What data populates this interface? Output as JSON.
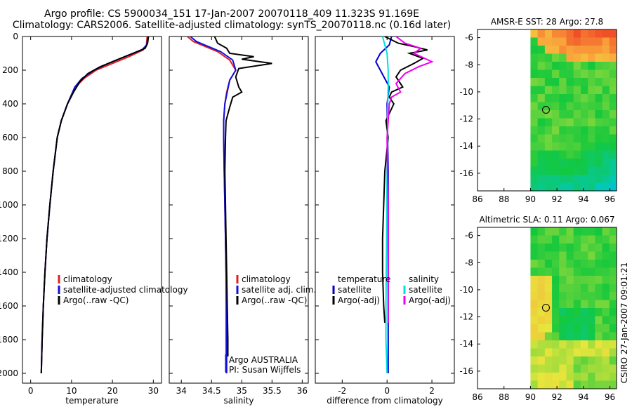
{
  "header": {
    "line1": "Argo profile: CS 5900034_151 17-Jan-2007 20070118_409 11.323S 91.169E",
    "line2": "Climatology: CARS2006. Satellite-adjusted climatology: synTS_20070118.nc (0.16d later)"
  },
  "colors": {
    "climatology": "#e02020",
    "satellite": "#1010e0",
    "argo": "#000000",
    "sat_diff_temp": "#0000cc",
    "sat_diff_salt": "#00e0e0",
    "argo_diff_salt": "#ee00ee"
  },
  "chart_data": [
    {
      "id": "temperature",
      "type": "line",
      "xlabel": "temperature",
      "ylabel": "",
      "xlim": [
        -2,
        32
      ],
      "ylim": [
        2100,
        0
      ],
      "xticks": [
        "0",
        "10",
        "20",
        "30"
      ],
      "xtick_values": [
        0,
        10,
        20,
        30
      ],
      "yticks": [
        "0",
        "200",
        "400",
        "600",
        "800",
        "1000",
        "1200",
        "1400",
        "1600",
        "1800",
        "2000"
      ],
      "ytick_values": [
        0,
        200,
        400,
        600,
        800,
        1000,
        1200,
        1400,
        1600,
        1800,
        2000
      ],
      "legend": [
        "climatology",
        "satellite-adjusted climatology",
        "Argo(..raw -QC)"
      ],
      "series": [
        {
          "name": "climatology",
          "color_key": "climatology",
          "x": [
            28.5,
            28.3,
            27.5,
            24,
            20,
            16,
            13,
            11,
            9,
            7.5,
            6.5,
            5.5,
            4.7,
            4,
            3.5,
            3.1,
            2.8,
            2.6
          ],
          "y": [
            0,
            50,
            80,
            120,
            160,
            200,
            250,
            300,
            400,
            500,
            600,
            800,
            1000,
            1200,
            1400,
            1600,
            1800,
            2000
          ]
        },
        {
          "name": "satellite-adjusted climatology",
          "color_key": "satellite",
          "x": [
            28.7,
            28.4,
            27.2,
            23,
            19,
            15.5,
            12.5,
            10.8,
            9,
            7.5,
            6.5,
            5.5,
            4.7,
            4,
            3.5,
            3.1,
            2.8,
            2.6
          ],
          "y": [
            0,
            50,
            80,
            120,
            160,
            200,
            250,
            300,
            400,
            500,
            600,
            800,
            1000,
            1200,
            1400,
            1600,
            1800,
            2000
          ]
        },
        {
          "name": "Argo(..raw -QC)",
          "color_key": "argo",
          "x": [
            28.8,
            28.6,
            28,
            25,
            21,
            17,
            14,
            12,
            10.5,
            9,
            7.5,
            6.5,
            5.5,
            4.7,
            4,
            3.5,
            3.1,
            2.8,
            2.6
          ],
          "y": [
            0,
            40,
            70,
            100,
            140,
            180,
            220,
            270,
            330,
            400,
            500,
            600,
            800,
            1000,
            1200,
            1400,
            1600,
            1800,
            2000
          ]
        }
      ]
    },
    {
      "id": "salinity",
      "type": "line",
      "xlabel": "salinity",
      "xlim": [
        33.8,
        36.1
      ],
      "ylim": [
        2100,
        0
      ],
      "xticks": [
        "34",
        "34.5",
        "35",
        "35.5",
        "36"
      ],
      "xtick_values": [
        34,
        34.5,
        35,
        35.5,
        36
      ],
      "legend": [
        "climatology",
        "satellite adj. clim.",
        "Argo(..raw -QC)"
      ],
      "annotation": [
        "Argo AUSTRALIA",
        "PI: Susan Wijffels"
      ],
      "series": [
        {
          "name": "climatology",
          "color_key": "climatology",
          "x": [
            34.1,
            34.2,
            34.4,
            34.6,
            34.8,
            34.9,
            34.8,
            34.75,
            34.72,
            34.7,
            34.7,
            34.71,
            34.72,
            34.73,
            34.74,
            34.74,
            34.74,
            34.74
          ],
          "y": [
            0,
            30,
            60,
            90,
            140,
            200,
            260,
            330,
            400,
            500,
            600,
            800,
            1000,
            1200,
            1400,
            1600,
            1800,
            2000
          ]
        },
        {
          "name": "satellite adj. clim.",
          "color_key": "satellite",
          "x": [
            34.15,
            34.25,
            34.45,
            34.65,
            34.85,
            34.9,
            34.8,
            34.76,
            34.72,
            34.7,
            34.7,
            34.71,
            34.72,
            34.73,
            34.74,
            34.75,
            34.75,
            34.75
          ],
          "y": [
            0,
            30,
            60,
            90,
            140,
            200,
            260,
            330,
            400,
            500,
            600,
            800,
            1000,
            1200,
            1400,
            1600,
            1800,
            2000
          ]
        },
        {
          "name": "Argo(..raw -QC)",
          "color_key": "argo",
          "x": [
            34.55,
            34.6,
            34.75,
            34.8,
            35.2,
            35.0,
            35.5,
            34.95,
            34.9,
            34.95,
            35.0,
            34.85,
            34.8,
            34.74,
            34.73,
            34.72,
            34.73,
            34.74,
            34.75,
            34.76,
            34.77,
            34.77
          ],
          "y": [
            0,
            40,
            70,
            100,
            120,
            135,
            160,
            190,
            240,
            300,
            330,
            360,
            420,
            500,
            600,
            800,
            1000,
            1200,
            1400,
            1600,
            1800,
            1900
          ]
        }
      ]
    },
    {
      "id": "difference",
      "type": "line",
      "xlabel": "difference from climatology",
      "xlim": [
        -3.2,
        3.0
      ],
      "ylim": [
        2100,
        0
      ],
      "xticks": [
        "-2",
        "0",
        "2"
      ],
      "xtick_values": [
        -2,
        0,
        2
      ],
      "legend_left": [
        "temperature",
        "satellite",
        "Argo(-adj)"
      ],
      "legend_right": [
        "salinity",
        "satellite",
        "Argo(-adj)"
      ],
      "series": [
        {
          "name": "temperature satellite",
          "color_key": "sat_diff_temp",
          "x": [
            0.2,
            0.1,
            -0.3,
            -0.5,
            -0.3,
            0.1,
            0.0,
            0.05,
            0.05,
            0.05,
            0.05
          ],
          "y": [
            0,
            50,
            100,
            150,
            200,
            300,
            400,
            800,
            1200,
            1600,
            2000
          ]
        },
        {
          "name": "temperature Argo(-adj)",
          "color_key": "argo",
          "x": [
            -0.1,
            0.5,
            1.2,
            1.8,
            1.0,
            1.6,
            1.2,
            0.6,
            0.4,
            0.7,
            0.2,
            0.1,
            0.3,
            -0.05,
            0.05,
            -0.1,
            -0.15,
            -0.2,
            -0.2,
            -0.15,
            -0.1
          ],
          "y": [
            0,
            40,
            60,
            80,
            100,
            130,
            160,
            200,
            240,
            300,
            330,
            360,
            400,
            500,
            600,
            800,
            1000,
            1200,
            1400,
            1600,
            1700
          ]
        },
        {
          "name": "salinity satellite",
          "color_key": "sat_diff_salt",
          "x": [
            -0.2,
            -0.1,
            0.0,
            0.05,
            0.05,
            0.03,
            0.02,
            0.0,
            -0.02,
            -0.05,
            -0.05,
            0.0
          ],
          "y": [
            0,
            50,
            100,
            200,
            300,
            400,
            600,
            800,
            1200,
            1600,
            1800,
            2000
          ]
        },
        {
          "name": "salinity Argo(-adj)",
          "color_key": "argo_diff_salt",
          "x": [
            0.4,
            0.8,
            1.5,
            1.2,
            2.0,
            1.4,
            0.8,
            0.4,
            0.6,
            0.2,
            0.1,
            0.05,
            0.0,
            0.02,
            0.05,
            0.05,
            0.05,
            0.05,
            0.05
          ],
          "y": [
            0,
            40,
            70,
            100,
            150,
            180,
            220,
            280,
            330,
            360,
            400,
            500,
            600,
            800,
            1000,
            1200,
            1400,
            1600,
            1700
          ]
        }
      ]
    },
    {
      "id": "sst_map",
      "type": "heatmap",
      "title": "AMSR-E SST: 28 Argo: 27.8",
      "xlim": [
        86,
        96.5
      ],
      "ylim": [
        -17.3,
        -5.4
      ],
      "xticks": [
        "86",
        "88",
        "90",
        "92",
        "94",
        "96"
      ],
      "xtick_values": [
        86,
        88,
        90,
        92,
        94,
        96
      ],
      "yticks": [
        "-6",
        "-8",
        "-10",
        "-12",
        "-14",
        "-16"
      ],
      "ytick_values": [
        -6,
        -8,
        -10,
        -12,
        -14,
        -16
      ],
      "data_lon_min": 90,
      "float_position": [
        91.169,
        -11.323
      ]
    },
    {
      "id": "sla_map",
      "type": "heatmap",
      "title": "Altimetric SLA: 0.11 Argo: 0.067",
      "xlim": [
        86,
        96.5
      ],
      "ylim": [
        -17.3,
        -5.4
      ],
      "xticks": [
        "86",
        "88",
        "90",
        "92",
        "94",
        "96"
      ],
      "xtick_values": [
        86,
        88,
        90,
        92,
        94,
        96
      ],
      "yticks": [
        "-6",
        "-8",
        "-10",
        "-12",
        "-14",
        "-16"
      ],
      "ytick_values": [
        -6,
        -8,
        -10,
        -12,
        -14,
        -16
      ],
      "data_lon_min": 90,
      "float_position": [
        91.169,
        -11.323
      ]
    }
  ],
  "footer_stamp": "CSIRO 27-Jan-2007 09:01:21"
}
